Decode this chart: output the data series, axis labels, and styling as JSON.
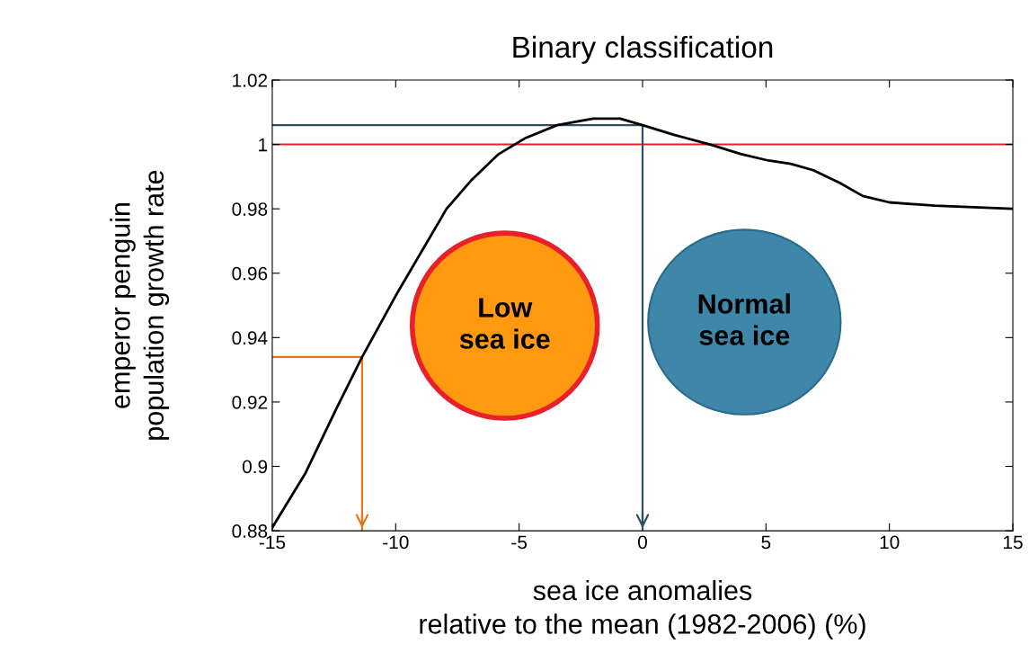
{
  "chart_data": {
    "type": "line",
    "title": "Binary classification",
    "xlabel": "sea ice anomalies\nrelative to the mean (1982-2006) (%)",
    "ylabel": "emperor penguin\npopulation growth rate",
    "x": [
      -15,
      -13.65,
      -12.4,
      -11.36,
      -10.0,
      -7.94,
      -6.92,
      -5.83,
      -4.74,
      -3.46,
      -2.0,
      -0.91,
      0,
      1.27,
      2.73,
      4.0,
      5.1,
      6.0,
      6.92,
      8.0,
      8.92,
      10.0,
      11.83,
      15
    ],
    "series": [
      {
        "color": "#000000",
        "values": [
          0.881,
          0.898,
          0.918,
          0.934,
          0.953,
          0.98,
          0.989,
          0.997,
          1.002,
          1.006,
          1.008,
          1.008,
          1.006,
          1.003,
          1.0,
          0.997,
          0.995,
          0.994,
          0.992,
          0.988,
          0.984,
          0.982,
          0.981,
          0.98
        ]
      },
      {
        "color": "#e07820",
        "x": [
          -15,
          -11.36,
          -11.36
        ],
        "values": [
          0.934,
          0.934,
          0.88
        ]
      },
      {
        "color": "#2f4f5f",
        "x": [
          -15,
          0,
          0
        ],
        "values": [
          1.006,
          1.006,
          0.88
        ]
      }
    ],
    "ref_lines": [
      {
        "axis": "y",
        "value": 1,
        "color": "#e8202a"
      }
    ],
    "annotations": [
      "Low\nsea ice",
      "Normal\nsea ice"
    ],
    "xlim": [
      -15,
      15
    ],
    "ylim": [
      0.88,
      1.02
    ],
    "xticks": [
      -15,
      -10,
      -5,
      0,
      5,
      10,
      15
    ],
    "yticks": [
      0.88,
      {
        "value": 0.9,
        "label": "0.9"
      },
      0.92,
      0.94,
      0.96,
      0.98,
      {
        "value": 1,
        "label": "1"
      },
      1.02
    ],
    "grid": false,
    "legend": false,
    "marker": "none",
    "line_style": "solid"
  }
}
